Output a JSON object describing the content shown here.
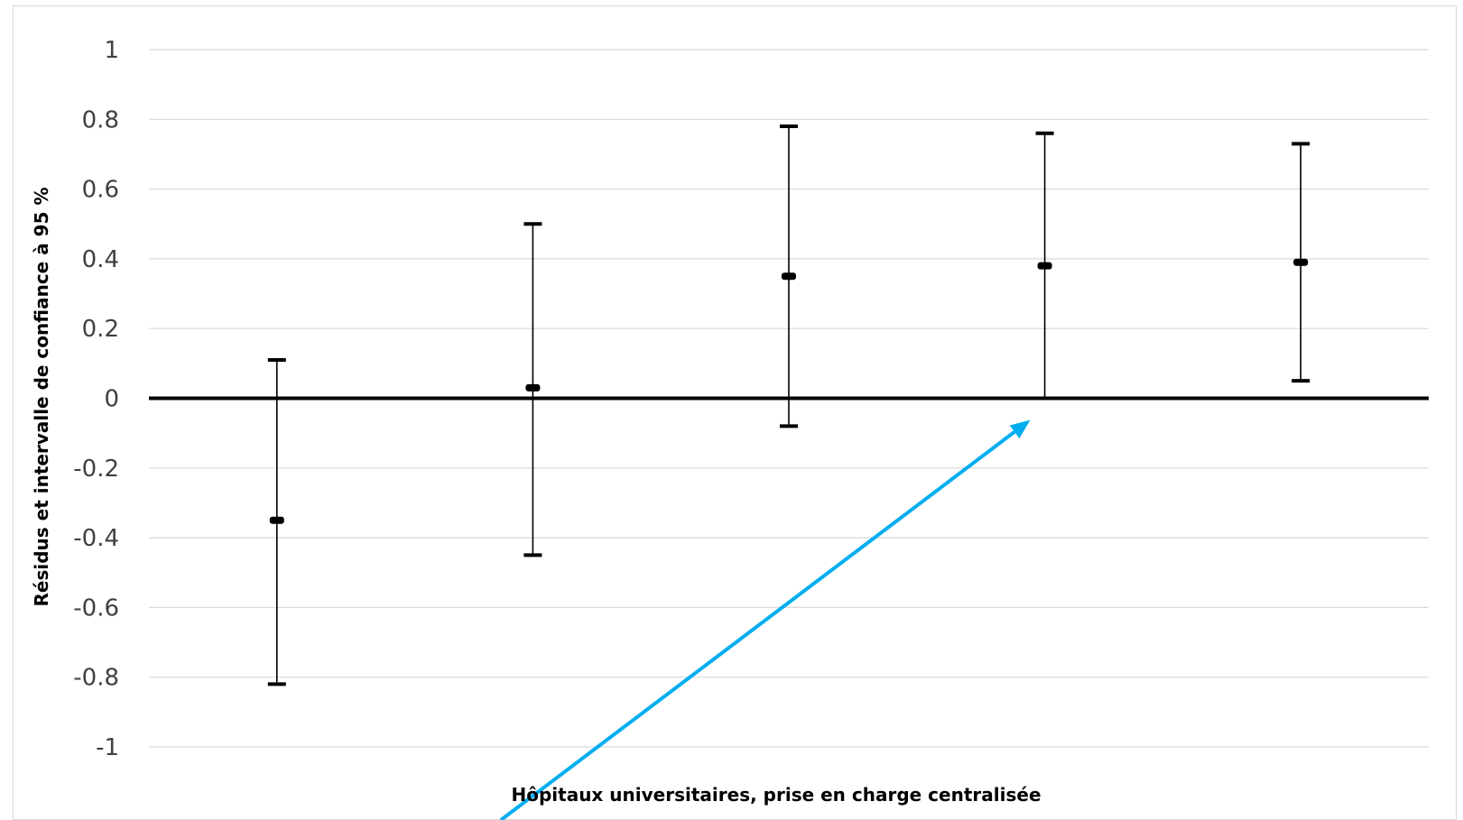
{
  "chart_data": {
    "type": "scatter",
    "title": "",
    "xlabel": "Hôpitaux universitaires, prise en charge centralisée",
    "ylabel": "Résidus et intervalle de confiance à 95 %",
    "ylim": [
      -1,
      1
    ],
    "yticks": [
      1,
      0.8,
      0.6,
      0.4,
      0.2,
      0,
      -0.2,
      -0.4,
      -0.6,
      -0.8,
      -1
    ],
    "ytick_labels": [
      "1",
      "0.8",
      "0.6",
      "0.4",
      "0.2",
      "0",
      "-0.2",
      "-0.4",
      "-0.6",
      "-0.8",
      "-1"
    ],
    "grid": true,
    "points": [
      {
        "value": -0.35,
        "lower": -0.82,
        "upper": 0.11
      },
      {
        "value": 0.03,
        "lower": -0.45,
        "upper": 0.5
      },
      {
        "value": 0.35,
        "lower": -0.08,
        "upper": 0.78
      },
      {
        "value": 0.38,
        "lower": 0.0,
        "upper": 0.76
      },
      {
        "value": 0.39,
        "lower": 0.05,
        "upper": 0.73
      }
    ],
    "colors": {
      "grid": "#d9d9d9",
      "zero_line": "#000000",
      "error_bar": "#000000",
      "marker": "#000000",
      "arrow": "#00aeef",
      "tick_text": "#404040"
    }
  },
  "annotation": {
    "type": "arrow",
    "color": "#00aeef",
    "points_to": "point-4-lower-bound"
  }
}
